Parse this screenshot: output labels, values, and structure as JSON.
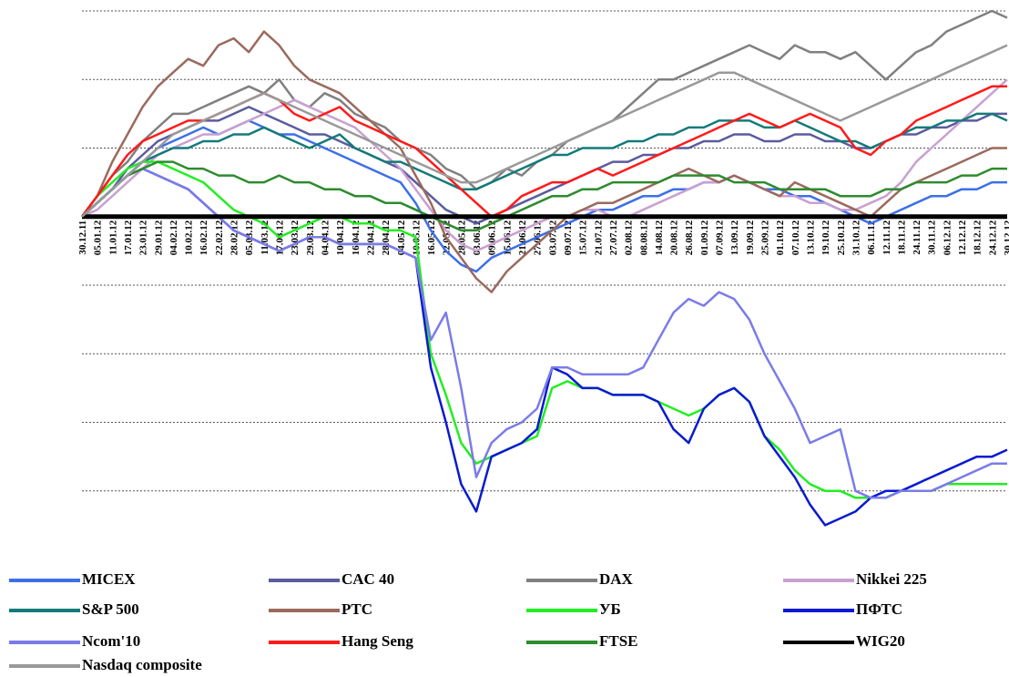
{
  "chart_data": {
    "type": "line",
    "categories": [
      "30.12.11",
      "05.01.12",
      "11.01.12",
      "17.01.12",
      "23.01.12",
      "29.01.12",
      "04.02.12",
      "10.02.12",
      "16.02.12",
      "22.02.12",
      "28.02.12",
      "05.03.12",
      "11.03.12",
      "17.03.12",
      "23.03.12",
      "29.03.12",
      "04.04.12",
      "10.04.12",
      "16.04.12",
      "22.04.12",
      "28.04.12",
      "04.05.12",
      "10.05.12",
      "16.05.12",
      "22.05.12",
      "28.05.12",
      "03.06.12",
      "09.06.12",
      "15.06.12",
      "21.06.12",
      "27.06.12",
      "03.07.12",
      "09.07.12",
      "15.07.12",
      "21.07.12",
      "27.07.12",
      "02.08.12",
      "08.08.12",
      "14.08.12",
      "20.08.12",
      "26.08.12",
      "01.09.12",
      "07.09.12",
      "13.09.12",
      "19.09.12",
      "25.09.12",
      "01.10.12",
      "07.10.12",
      "13.10.12",
      "19.10.12",
      "25.10.12",
      "31.10.12",
      "06.11.12",
      "12.11.12",
      "18.11.12",
      "24.11.12",
      "30.11.12",
      "06.12.12",
      "12.12.12",
      "18.12.12",
      "24.12.12",
      "30.12.12"
    ],
    "ylim": [
      -48,
      30
    ],
    "yticks": [
      -40,
      -30,
      -20,
      -10,
      0,
      10,
      20,
      30
    ],
    "grid": true,
    "series": [
      {
        "name": "MICEX",
        "color": "#3d6fe8",
        "values": [
          0,
          2,
          4,
          6,
          8,
          10,
          11,
          12,
          13,
          12,
          13,
          14,
          13,
          12,
          12,
          11,
          10,
          9,
          8,
          7,
          6,
          5,
          2,
          -2,
          -5,
          -7,
          -8,
          -6,
          -5,
          -4,
          -3,
          -2,
          -1,
          0,
          1,
          1,
          2,
          3,
          3,
          4,
          4,
          5,
          5,
          6,
          5,
          4,
          4,
          3,
          3,
          2,
          1,
          0,
          -1,
          0,
          1,
          2,
          3,
          3,
          4,
          4,
          5,
          5
        ]
      },
      {
        "name": "CAC 40",
        "color": "#5b5b9f",
        "values": [
          0,
          2,
          4,
          7,
          9,
          11,
          12,
          13,
          14,
          14,
          15,
          16,
          15,
          14,
          13,
          12,
          12,
          11,
          10,
          9,
          8,
          7,
          5,
          3,
          1,
          0,
          -1,
          0,
          1,
          2,
          3,
          4,
          5,
          6,
          7,
          8,
          8,
          9,
          9,
          10,
          10,
          11,
          11,
          12,
          12,
          11,
          11,
          12,
          12,
          11,
          11,
          10,
          10,
          11,
          12,
          12,
          13,
          13,
          14,
          14,
          15,
          15
        ]
      },
      {
        "name": "DAX",
        "color": "#808080",
        "values": [
          0,
          3,
          6,
          8,
          11,
          13,
          15,
          15,
          16,
          17,
          18,
          19,
          18,
          20,
          17,
          16,
          18,
          17,
          15,
          14,
          13,
          11,
          10,
          9,
          7,
          6,
          4,
          5,
          7,
          6,
          8,
          9,
          11,
          12,
          13,
          14,
          16,
          18,
          20,
          20,
          21,
          22,
          23,
          24,
          25,
          24,
          23,
          25,
          24,
          24,
          23,
          24,
          22,
          20,
          22,
          24,
          25,
          27,
          28,
          29,
          30,
          29
        ]
      },
      {
        "name": "Nikkei 225",
        "color": "#c9a0d0",
        "values": [
          0,
          1,
          3,
          5,
          7,
          9,
          10,
          11,
          12,
          12,
          13,
          14,
          15,
          16,
          17,
          16,
          15,
          14,
          13,
          11,
          9,
          7,
          4,
          1,
          -2,
          -4,
          -5,
          -4,
          -3,
          -2,
          -1,
          0,
          0,
          1,
          1,
          0,
          0,
          1,
          2,
          3,
          4,
          5,
          5,
          6,
          5,
          4,
          3,
          3,
          2,
          2,
          1,
          1,
          2,
          3,
          5,
          8,
          10,
          12,
          14,
          16,
          18,
          20
        ]
      },
      {
        "name": "S&P 500",
        "color": "#137a7a",
        "values": [
          0,
          2,
          4,
          6,
          8,
          9,
          10,
          10,
          11,
          11,
          12,
          12,
          13,
          12,
          11,
          10,
          11,
          12,
          10,
          9,
          8,
          8,
          7,
          6,
          5,
          4,
          4,
          5,
          6,
          7,
          8,
          9,
          9,
          10,
          10,
          10,
          11,
          11,
          12,
          12,
          13,
          13,
          14,
          14,
          14,
          13,
          13,
          14,
          13,
          12,
          11,
          11,
          10,
          11,
          12,
          13,
          13,
          14,
          14,
          15,
          15,
          14
        ]
      },
      {
        "name": "PTC",
        "color": "#9b6a5d",
        "values": [
          0,
          3,
          8,
          12,
          16,
          19,
          21,
          23,
          22,
          25,
          26,
          24,
          27,
          25,
          22,
          20,
          19,
          18,
          16,
          14,
          12,
          10,
          6,
          2,
          -3,
          -6,
          -9,
          -11,
          -8,
          -6,
          -4,
          -2,
          0,
          1,
          2,
          2,
          3,
          4,
          5,
          6,
          7,
          6,
          5,
          6,
          5,
          4,
          3,
          5,
          4,
          3,
          2,
          1,
          0,
          2,
          4,
          5,
          6,
          7,
          8,
          9,
          10,
          10
        ]
      },
      {
        "name": "УБ",
        "color": "#22ee22",
        "values": [
          0,
          3,
          5,
          7,
          8,
          8,
          7,
          6,
          5,
          3,
          1,
          0,
          -1,
          -3,
          -2,
          -1,
          0,
          0,
          -1,
          -1,
          -2,
          -2,
          -3,
          -20,
          -26,
          -33,
          -36,
          -35,
          -34,
          -33,
          -32,
          -25,
          -24,
          -25,
          -25,
          -26,
          -26,
          -26,
          -27,
          -28,
          -29,
          -28,
          -26,
          -25,
          -27,
          -32,
          -34,
          -37,
          -39,
          -40,
          -40,
          -41,
          -41,
          -41,
          -40,
          -40,
          -40,
          -39,
          -39,
          -39,
          -39,
          -39
        ]
      },
      {
        "name": "ПФТС",
        "color": "#0a1ad0",
        "values": [
          0,
          2,
          4,
          6,
          7,
          6,
          5,
          4,
          2,
          0,
          -2,
          -3,
          -4,
          -5,
          -4,
          -3,
          -3,
          -4,
          -4,
          -4,
          -4,
          -5,
          -6,
          -22,
          -30,
          -39,
          -43,
          -35,
          -34,
          -33,
          -31,
          -22,
          -23,
          -25,
          -25,
          -26,
          -26,
          -26,
          -27,
          -31,
          -33,
          -28,
          -26,
          -25,
          -27,
          -32,
          -35,
          -38,
          -42,
          -45,
          -44,
          -43,
          -41,
          -40,
          -40,
          -39,
          -38,
          -37,
          -36,
          -35,
          -35,
          -34
        ]
      },
      {
        "name": "Ncom'10",
        "color": "#7b7be8",
        "values": [
          0,
          2,
          4,
          6,
          7,
          6,
          5,
          4,
          2,
          0,
          -2,
          -3,
          -4,
          -5,
          -4,
          -3,
          -3,
          -4,
          -4,
          -4,
          -4,
          -5,
          -6,
          -18,
          -14,
          -25,
          -38,
          -33,
          -31,
          -30,
          -28,
          -22,
          -22,
          -23,
          -23,
          -23,
          -23,
          -22,
          -18,
          -14,
          -12,
          -13,
          -11,
          -12,
          -15,
          -20,
          -24,
          -28,
          -33,
          -32,
          -31,
          -40,
          -41,
          -41,
          -40,
          -40,
          -40,
          -39,
          -38,
          -37,
          -36,
          -36
        ]
      },
      {
        "name": "Hang Seng",
        "color": "#ff1a1a",
        "values": [
          0,
          3,
          6,
          9,
          11,
          12,
          13,
          14,
          14,
          15,
          16,
          17,
          18,
          17,
          15,
          14,
          15,
          16,
          14,
          13,
          12,
          11,
          10,
          8,
          6,
          4,
          2,
          0,
          1,
          3,
          4,
          5,
          5,
          6,
          7,
          6,
          7,
          8,
          9,
          10,
          11,
          12,
          13,
          14,
          15,
          14,
          13,
          14,
          15,
          14,
          13,
          10,
          9,
          11,
          12,
          14,
          15,
          16,
          17,
          18,
          19,
          19
        ]
      },
      {
        "name": "FTSE",
        "color": "#2e8b2e",
        "values": [
          0,
          2,
          4,
          6,
          7,
          8,
          8,
          7,
          7,
          6,
          6,
          5,
          5,
          6,
          5,
          5,
          4,
          4,
          3,
          3,
          2,
          2,
          1,
          0,
          -1,
          -2,
          -2,
          -1,
          0,
          1,
          2,
          3,
          3,
          4,
          4,
          5,
          5,
          5,
          5,
          6,
          6,
          6,
          6,
          5,
          5,
          5,
          4,
          4,
          4,
          4,
          3,
          3,
          3,
          4,
          4,
          5,
          5,
          5,
          6,
          6,
          7,
          7
        ]
      },
      {
        "name": "WIG20",
        "color": "#000000",
        "values": [
          0,
          0,
          0,
          0,
          0,
          0,
          0,
          0,
          0,
          0,
          0,
          0,
          0,
          0,
          0,
          0,
          0,
          0,
          0,
          0,
          0,
          0,
          0,
          0,
          0,
          0,
          0,
          0,
          0,
          0,
          0,
          0,
          0,
          0,
          0,
          0,
          0,
          0,
          0,
          0,
          0,
          0,
          0,
          0,
          0,
          0,
          0,
          0,
          0,
          0,
          0,
          0,
          0,
          0,
          0,
          0,
          0,
          0,
          0,
          0,
          0,
          0
        ]
      },
      {
        "name": "Nasdaq composite",
        "color": "#999999",
        "values": [
          0,
          2,
          4,
          6,
          8,
          10,
          12,
          13,
          14,
          15,
          16,
          17,
          18,
          17,
          16,
          15,
          14,
          13,
          12,
          11,
          10,
          9,
          8,
          7,
          6,
          5,
          5,
          6,
          7,
          8,
          9,
          10,
          11,
          12,
          13,
          14,
          15,
          16,
          17,
          18,
          19,
          20,
          21,
          21,
          20,
          19,
          18,
          17,
          16,
          15,
          14,
          15,
          16,
          17,
          18,
          19,
          20,
          21,
          22,
          23,
          24,
          25
        ]
      }
    ]
  }
}
